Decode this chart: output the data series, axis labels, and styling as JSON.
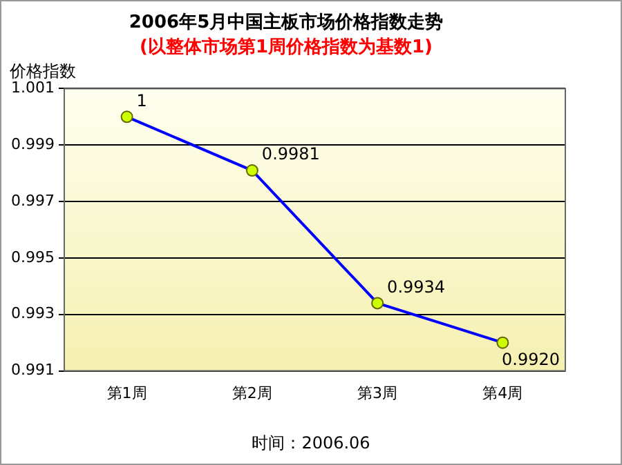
{
  "chart_data": {
    "type": "line",
    "title": "2006年5月中国主板市场价格指数走势",
    "subtitle": "(以整体市场第1周价格指数为基数1)",
    "ylabel": "价格指数",
    "categories": [
      "第1周",
      "第2周",
      "第3周",
      "第4周"
    ],
    "series": [
      {
        "color": "#0000ff",
        "values": [
          1,
          0.9981,
          0.9934,
          0.992
        ],
        "value_labels": [
          "1",
          "0.9981",
          "0.9934",
          "0.9920"
        ]
      }
    ],
    "ylim": [
      0.991,
      1.001
    ],
    "yticks": [
      0.991,
      0.993,
      0.995,
      0.997,
      0.999,
      1.001
    ],
    "grid": "y",
    "marker": "circle",
    "line_style": "solid",
    "legend": false,
    "annotations": [
      "时间：2006.06"
    ]
  }
}
